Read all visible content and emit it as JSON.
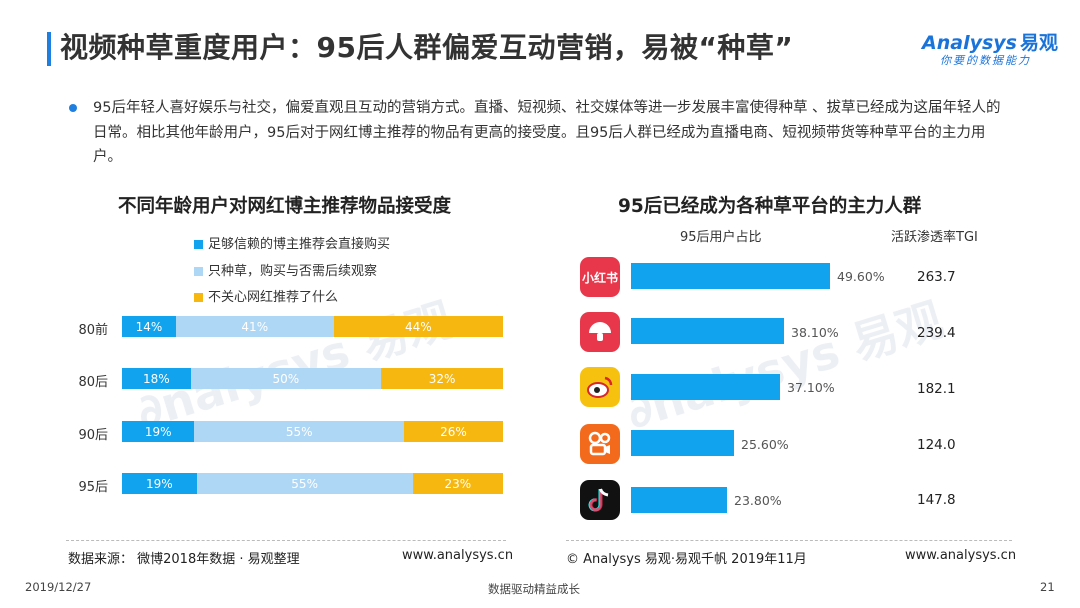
{
  "header": {
    "title": "视频种草重度用户：95后人群偏爱互动营销，易被“种草”",
    "logo_brand": "nalysys",
    "logo_brand_prefix": "A",
    "logo_cn": "易观",
    "logo_tagline": "你要的数据能力"
  },
  "bullet": "95后年轻人喜好娱乐与社交，偏爱直观且互动的营销方式。直播、短视频、社交媒体等进一步发展丰富使得种草 、拔草已经成为这届年轻人的日常。相比其他年龄用户，95后对于网红博主推荐的物品有更高的接受度。且95后人群已经成为直播电商、短视频带货等种草平台的主力用户。",
  "left_chart": {
    "title": "不同年龄用户对网红博主推荐物品接受度",
    "legend": [
      {
        "label": "足够信赖的博主推荐会直接购买",
        "color": "#12a3ee"
      },
      {
        "label": "只种草，购买与否需后续观察",
        "color": "#aed6f5"
      },
      {
        "label": "不关心网红推荐了什么",
        "color": "#f6b810"
      }
    ],
    "rows": [
      {
        "label": "80前",
        "values": [
          "14%",
          "41%",
          "44%"
        ]
      },
      {
        "label": "80后",
        "values": [
          "18%",
          "50%",
          "32%"
        ]
      },
      {
        "label": "90后",
        "values": [
          "19%",
          "55%",
          "26%"
        ]
      },
      {
        "label": "95后",
        "values": [
          "19%",
          "55%",
          "23%"
        ]
      }
    ]
  },
  "right_chart": {
    "title": "95后已经成为各种草平台的主力人群",
    "col_share": "95后用户占比",
    "col_tgi": "活跃渗透率TGI",
    "rows": [
      {
        "app_icon": "xiaohongshu-icon",
        "icon_text": "小红书",
        "share": "49.60%",
        "tgi": "263.7"
      },
      {
        "app_icon": "mogujie-icon",
        "icon_text": "",
        "share": "38.10%",
        "tgi": "239.4"
      },
      {
        "app_icon": "weibo-icon",
        "icon_text": "",
        "share": "37.10%",
        "tgi": "182.1"
      },
      {
        "app_icon": "kuaishou-icon",
        "icon_text": "",
        "share": "25.60%",
        "tgi": "124.0"
      },
      {
        "app_icon": "douyin-icon",
        "icon_text": "",
        "share": "23.80%",
        "tgi": "147.8"
      }
    ]
  },
  "chart_data": [
    {
      "type": "bar",
      "orientation": "horizontal",
      "stacked": true,
      "title": "不同年龄用户对网红博主推荐物品接受度",
      "categories": [
        "80前",
        "80后",
        "90后",
        "95后"
      ],
      "series": [
        {
          "name": "足够信赖的博主推荐会直接购买",
          "values": [
            14,
            18,
            19,
            19
          ]
        },
        {
          "name": "只种草，购买与否需后续观察",
          "values": [
            41,
            50,
            55,
            55
          ]
        },
        {
          "name": "不关心网红推荐了什么",
          "values": [
            44,
            32,
            26,
            23
          ]
        }
      ],
      "legend": "top-left"
    },
    {
      "type": "bar",
      "orientation": "horizontal",
      "title": "95后已经成为各种草平台的主力人群",
      "categories": [
        "小红书",
        "蘑菇街",
        "微博",
        "快手",
        "抖音"
      ],
      "series": [
        {
          "name": "95后用户占比",
          "values": [
            49.6,
            38.1,
            37.1,
            25.6,
            23.8
          ]
        }
      ],
      "extra_column": {
        "name": "活跃渗透率TGI",
        "values": [
          263.7,
          239.4,
          182.1,
          124.0,
          147.8
        ]
      }
    }
  ],
  "footer": {
    "source": "数据来源： 微博2018年数据 · 易观整理",
    "site_left": "www.analysys.cn",
    "copyright": "© Analysys 易观·易观千帆 2019年11月",
    "site_right": "www.analysys.cn",
    "date": "2019/12/27",
    "slogan": "数据驱动精益成长",
    "page": "21"
  },
  "colors": {
    "accent": "#1f7fe0",
    "bar_blue": "#12a3ee",
    "bar_light": "#aed6f5",
    "bar_yellow": "#f6b810"
  }
}
